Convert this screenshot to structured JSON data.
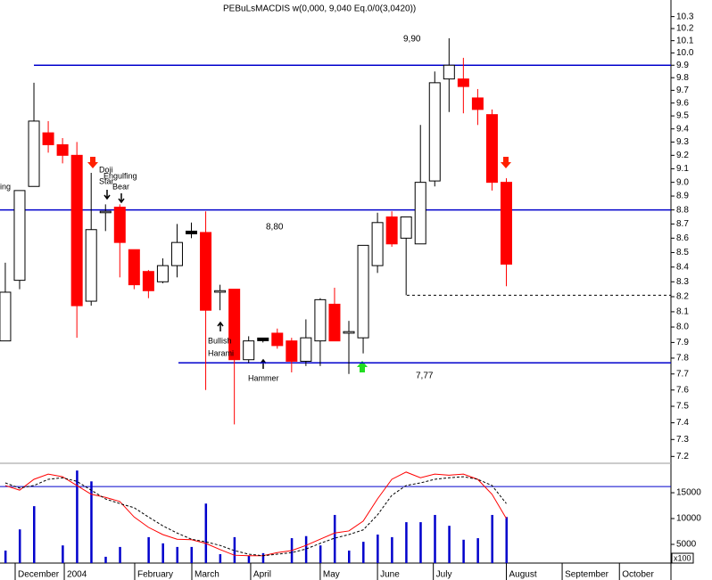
{
  "chart_data": [
    {
      "type": "candlestick",
      "title": "PEBuLsMACDIS w(0,000, 9,040 Eq.0/0(3,0420))",
      "categories": [
        null,
        null,
        null,
        null,
        null,
        null,
        null,
        null,
        null,
        null,
        null,
        null,
        null,
        null,
        null,
        null,
        null,
        null,
        null,
        null,
        null,
        null,
        null,
        null,
        null,
        null,
        null,
        null,
        null,
        null,
        null,
        null,
        null,
        null,
        null,
        null
      ],
      "open": [
        7.91,
        8.31,
        8.97,
        9.37,
        9.28,
        9.2,
        8.17,
        8.78,
        8.82,
        8.52,
        8.37,
        8.3,
        8.41,
        8.64,
        8.64,
        8.23,
        8.25,
        7.79,
        7.92,
        7.96,
        7.91,
        7.78,
        7.91,
        8.15,
        7.96,
        7.93,
        8.41,
        8.75,
        8.6,
        8.56,
        9.01,
        9.79,
        9.79,
        9.64,
        9.51,
        9.0
      ],
      "high": [
        8.43,
        8.94,
        9.76,
        9.46,
        9.33,
        9.3,
        9.07,
        8.84,
        8.84,
        8.52,
        8.38,
        8.46,
        8.7,
        8.71,
        8.79,
        8.28,
        8.25,
        7.94,
        7.93,
        7.99,
        7.93,
        8.05,
        8.19,
        8.26,
        8.04,
        8.55,
        8.78,
        8.79,
        8.75,
        9.43,
        9.85,
        10.12,
        9.96,
        9.71,
        9.55,
        9.03
      ],
      "low": [
        7.91,
        8.25,
        8.97,
        9.22,
        9.14,
        7.93,
        8.14,
        8.65,
        8.33,
        8.25,
        8.19,
        8.29,
        8.33,
        8.6,
        7.6,
        8.11,
        7.39,
        7.77,
        7.9,
        7.86,
        7.71,
        7.75,
        7.75,
        7.91,
        7.7,
        7.83,
        8.36,
        8.54,
        8.21,
        8.56,
        8.97,
        9.53,
        9.52,
        9.43,
        8.94,
        8.27
      ],
      "close": [
        8.23,
        8.94,
        9.46,
        9.28,
        9.2,
        8.14,
        8.66,
        8.79,
        8.57,
        8.28,
        8.24,
        8.41,
        8.57,
        8.64,
        8.11,
        8.24,
        7.79,
        7.91,
        7.92,
        7.88,
        7.78,
        7.93,
        8.18,
        7.91,
        7.97,
        8.55,
        8.71,
        8.56,
        8.75,
        9.0,
        9.76,
        9.9,
        9.73,
        9.55,
        9.0,
        8.42
      ],
      "up_color": "#ffffff",
      "down_color": "#ff0000",
      "doji_color": "#000000",
      "log_scale": true,
      "ylim": [
        7.16,
        10.44
      ],
      "yticks": [
        7.2,
        7.3,
        7.4,
        7.5,
        7.6,
        7.7,
        7.8,
        7.9,
        {
          "value": 8.0,
          "label": "8.0"
        },
        8.1,
        8.2,
        8.3,
        8.4,
        8.5,
        8.6,
        8.7,
        8.8,
        8.9,
        {
          "value": 9.0,
          "label": "9.0"
        },
        9.1,
        9.2,
        9.3,
        9.4,
        9.5,
        9.6,
        9.7,
        9.8,
        9.9,
        {
          "value": 10.0,
          "label": "10.0"
        },
        10.1,
        10.2,
        10.3
      ],
      "xlim": [
        -0.37,
        46.5
      ],
      "hlines": [
        {
          "value": 9.9,
          "label": "9,90",
          "color": "#0000cc"
        },
        {
          "value": 8.8,
          "label": "8,80",
          "color": "#0000cc"
        },
        {
          "value": 7.77,
          "label": "7,77",
          "color": "#0000cc"
        },
        {
          "value": 8.21,
          "color": "#000000",
          "dashed": true
        }
      ],
      "annotations": [
        "ing",
        "Doji",
        "Star",
        "Engulfing",
        "Bear",
        "Bullish",
        "Harami",
        "Hammer"
      ]
    },
    {
      "type": "bar",
      "categories": [
        null,
        null,
        null,
        null,
        null,
        null,
        null,
        null,
        null,
        null,
        null,
        null,
        null,
        null,
        null,
        null,
        null,
        null,
        null,
        null,
        null,
        null,
        null,
        null,
        null,
        null,
        null,
        null,
        null,
        null,
        null,
        null,
        null,
        null,
        null,
        null
      ],
      "values": [
        3800,
        7900,
        12400,
        null,
        4800,
        19300,
        17200,
        2600,
        4500,
        null,
        6400,
        5200,
        4500,
        4500,
        12900,
        3100,
        6400,
        2800,
        3300,
        null,
        6200,
        6600,
        4800,
        10700,
        3800,
        5500,
        6900,
        6400,
        9300,
        9300,
        10700,
        8600,
        5900,
        6200,
        10700,
        10300
      ],
      "color": "#0000cc",
      "unit_label": "x100",
      "ylim": [
        1380,
        20700
      ],
      "yticks": [
        5000,
        10000,
        15000
      ],
      "xlim": [
        -0.37,
        46.5
      ],
      "xticks": [
        {
          "value": 0.69,
          "label": "December"
        },
        {
          "value": 4.12,
          "label": "2004"
        },
        {
          "value": 9.04,
          "label": "February"
        },
        {
          "value": 13.03,
          "label": "March"
        },
        {
          "value": 17.14,
          "label": "April"
        },
        {
          "value": 22.0,
          "label": "May"
        },
        {
          "value": 26.0,
          "label": "June"
        },
        {
          "value": 29.9,
          "label": "July"
        },
        {
          "value": 35.0,
          "label": "August"
        },
        {
          "value": 38.9,
          "label": "September"
        },
        {
          "value": 42.9,
          "label": "October"
        }
      ],
      "hlines": [
        {
          "value": 16200,
          "color": "#0000cc"
        }
      ],
      "lines": [
        {
          "color": "#ff0000",
          "values": [
            16400,
            15500,
            17600,
            18600,
            18100,
            16400,
            14700,
            14100,
            13300,
            10300,
            8300,
            6900,
            6000,
            5900,
            5200,
            4000,
            2900,
            2800,
            2800,
            3400,
            3800,
            4800,
            6000,
            7200,
            7600,
            9500,
            13800,
            17600,
            19000,
            17900,
            18600,
            18400,
            18600,
            17600,
            14700,
            10000
          ]
        },
        {
          "color": "#000000",
          "dashed": true,
          "values": [
            16900,
            15900,
            16400,
            17600,
            17900,
            17200,
            15500,
            13800,
            12900,
            12100,
            10300,
            8600,
            7200,
            6000,
            5500,
            4800,
            3800,
            3100,
            2800,
            3100,
            3400,
            4100,
            5200,
            6200,
            6900,
            7800,
            10700,
            14500,
            16400,
            16900,
            17600,
            17900,
            18100,
            17600,
            16400,
            12900
          ]
        }
      ]
    }
  ]
}
